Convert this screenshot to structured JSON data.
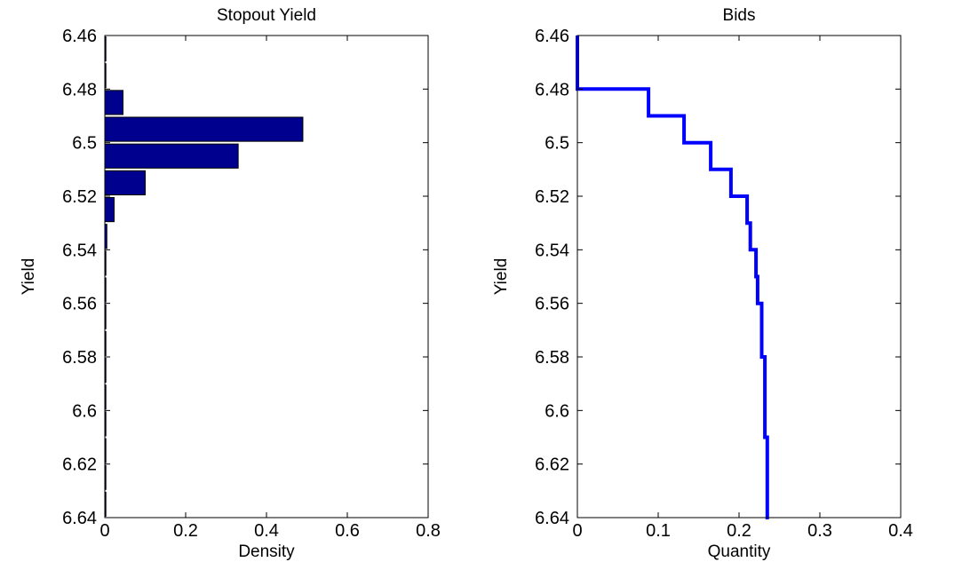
{
  "chart_data": [
    {
      "type": "bar",
      "orientation": "horizontal",
      "title": "Stopout Yield",
      "xlabel": "Density",
      "ylabel": "Yield",
      "xlim": [
        0,
        0.8
      ],
      "ylim": [
        6.46,
        6.64
      ],
      "y_reversed": true,
      "xticks": [
        "0",
        "0.2",
        "0.4",
        "0.6",
        "0.8"
      ],
      "yticks": [
        "6.46",
        "6.48",
        "6.5",
        "6.52",
        "6.54",
        "6.56",
        "6.58",
        "6.6",
        "6.62",
        "6.64"
      ],
      "bin_width": 0.009,
      "bar_color": "#00008f",
      "bars": [
        {
          "y": 6.46,
          "value": 0.002
        },
        {
          "y": 6.47,
          "value": 0.001
        },
        {
          "y": 6.48,
          "value": 0.045
        },
        {
          "y": 6.49,
          "value": 0.49
        },
        {
          "y": 6.5,
          "value": 0.33
        },
        {
          "y": 6.51,
          "value": 0.1
        },
        {
          "y": 6.52,
          "value": 0.023
        },
        {
          "y": 6.53,
          "value": 0.005
        },
        {
          "y": 6.54,
          "value": 0.001
        },
        {
          "y": 6.55,
          "value": 0.001
        },
        {
          "y": 6.56,
          "value": 0.001
        },
        {
          "y": 6.57,
          "value": 0.001
        },
        {
          "y": 6.58,
          "value": 0.001
        },
        {
          "y": 6.59,
          "value": 0.001
        },
        {
          "y": 6.6,
          "value": 0.001
        },
        {
          "y": 6.61,
          "value": 0.001
        },
        {
          "y": 6.62,
          "value": 0.001
        },
        {
          "y": 6.63,
          "value": 0.001
        }
      ]
    },
    {
      "type": "line",
      "step": true,
      "title": "Bids",
      "xlabel": "Quantity",
      "ylabel": "Yield",
      "xlim": [
        0,
        0.4
      ],
      "ylim": [
        6.46,
        6.64
      ],
      "y_reversed": true,
      "xticks": [
        "0",
        "0.1",
        "0.2",
        "0.3",
        "0.4"
      ],
      "yticks": [
        "6.46",
        "6.48",
        "6.5",
        "6.52",
        "6.54",
        "6.56",
        "6.58",
        "6.6",
        "6.62",
        "6.64"
      ],
      "line_color": "#0000ff",
      "points": [
        [
          0,
          6.46
        ],
        [
          0,
          6.48
        ],
        [
          0.088,
          6.48
        ],
        [
          0.088,
          6.49
        ],
        [
          0.132,
          6.49
        ],
        [
          0.132,
          6.5
        ],
        [
          0.165,
          6.5
        ],
        [
          0.165,
          6.51
        ],
        [
          0.19,
          6.51
        ],
        [
          0.19,
          6.52
        ],
        [
          0.21,
          6.52
        ],
        [
          0.21,
          6.53
        ],
        [
          0.214,
          6.53
        ],
        [
          0.214,
          6.54
        ],
        [
          0.221,
          6.54
        ],
        [
          0.221,
          6.55
        ],
        [
          0.223,
          6.55
        ],
        [
          0.223,
          6.56
        ],
        [
          0.228,
          6.56
        ],
        [
          0.228,
          6.58
        ],
        [
          0.232,
          6.58
        ],
        [
          0.232,
          6.61
        ],
        [
          0.235,
          6.61
        ],
        [
          0.235,
          6.64
        ],
        [
          0.237,
          6.64
        ]
      ]
    }
  ]
}
